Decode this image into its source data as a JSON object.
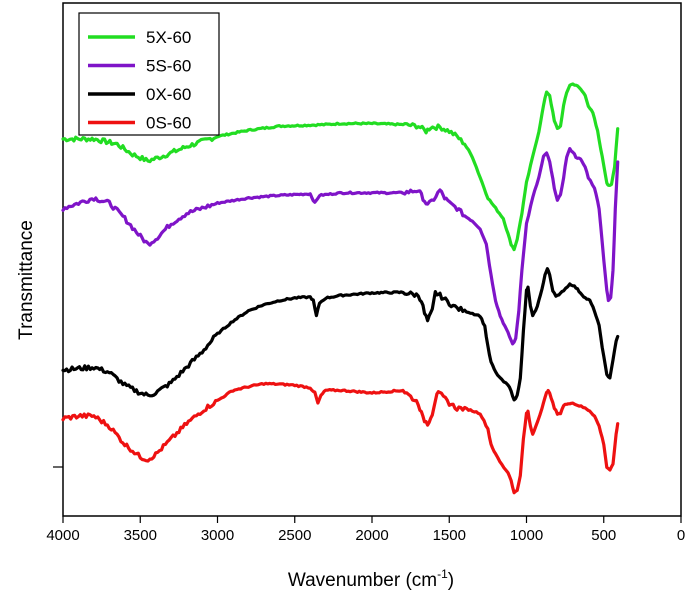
{
  "chart_data": {
    "type": "line",
    "title": "",
    "xlabel": "Wavenumber (cm",
    "xlabel_superscript": "-1",
    "xlabel_suffix": ")",
    "ylabel": "Transmittance",
    "xlim": [
      4000,
      0
    ],
    "ylim": [
      0,
      100
    ],
    "x_ticks": [
      4000,
      3500,
      3000,
      2500,
      2000,
      1500,
      1000,
      500,
      0
    ],
    "x_tick_labels": [
      "4000",
      "3500",
      "3000",
      "2500",
      "2000",
      "1500",
      "1000",
      "500",
      "0"
    ],
    "y_axis_numbered": false,
    "grid": false,
    "legend_position": "top-left",
    "series": [
      {
        "name": "5X-60",
        "color": "#22dd22",
        "points": [
          [
            4000,
            73.5
          ],
          [
            3800,
            73.5
          ],
          [
            3650,
            72.5
          ],
          [
            3550,
            70.5
          ],
          [
            3450,
            69.2
          ],
          [
            3350,
            70.2
          ],
          [
            3200,
            72
          ],
          [
            3000,
            74
          ],
          [
            2800,
            75.2
          ],
          [
            2600,
            76
          ],
          [
            2400,
            76.2
          ],
          [
            2300,
            76.3
          ],
          [
            2200,
            76.5
          ],
          [
            2000,
            76.5
          ],
          [
            1800,
            76.3
          ],
          [
            1700,
            76
          ],
          [
            1650,
            75
          ],
          [
            1620,
            75.8
          ],
          [
            1560,
            75.8
          ],
          [
            1500,
            75
          ],
          [
            1450,
            74
          ],
          [
            1400,
            72.5
          ],
          [
            1350,
            70
          ],
          [
            1300,
            66
          ],
          [
            1250,
            62
          ],
          [
            1200,
            60
          ],
          [
            1150,
            58
          ],
          [
            1120,
            55
          ],
          [
            1100,
            53
          ],
          [
            1080,
            52
          ],
          [
            1060,
            54
          ],
          [
            1030,
            59
          ],
          [
            1000,
            65
          ],
          [
            960,
            70
          ],
          [
            920,
            75
          ],
          [
            890,
            80
          ],
          [
            870,
            82.7
          ],
          [
            850,
            82
          ],
          [
            820,
            77
          ],
          [
            800,
            75.5
          ],
          [
            780,
            76
          ],
          [
            760,
            80
          ],
          [
            740,
            82.5
          ],
          [
            720,
            84
          ],
          [
            700,
            84.2
          ],
          [
            680,
            84
          ],
          [
            650,
            83.2
          ],
          [
            620,
            82
          ],
          [
            600,
            80
          ],
          [
            570,
            78.5
          ],
          [
            540,
            75
          ],
          [
            510,
            70
          ],
          [
            480,
            65
          ],
          [
            470,
            64.5
          ],
          [
            450,
            64.5
          ],
          [
            430,
            68
          ],
          [
            410,
            75.5
          ]
        ]
      },
      {
        "name": "5S-60",
        "color": "#7f14c8",
        "points": [
          [
            4000,
            60
          ],
          [
            3900,
            61
          ],
          [
            3800,
            62
          ],
          [
            3700,
            61
          ],
          [
            3600,
            58
          ],
          [
            3500,
            54.5
          ],
          [
            3450,
            53
          ],
          [
            3400,
            54
          ],
          [
            3300,
            57
          ],
          [
            3200,
            59
          ],
          [
            3100,
            60
          ],
          [
            3000,
            61
          ],
          [
            2800,
            62
          ],
          [
            2600,
            62.5
          ],
          [
            2400,
            62.8
          ],
          [
            2370,
            61
          ],
          [
            2340,
            62.5
          ],
          [
            2200,
            63
          ],
          [
            2000,
            63
          ],
          [
            1800,
            63
          ],
          [
            1700,
            63.5
          ],
          [
            1670,
            62
          ],
          [
            1640,
            60.5
          ],
          [
            1600,
            61.8
          ],
          [
            1560,
            63.5
          ],
          [
            1530,
            62
          ],
          [
            1500,
            61
          ],
          [
            1450,
            60
          ],
          [
            1400,
            58.5
          ],
          [
            1350,
            57.5
          ],
          [
            1300,
            56
          ],
          [
            1260,
            53
          ],
          [
            1230,
            47
          ],
          [
            1200,
            42
          ],
          [
            1170,
            39
          ],
          [
            1140,
            37
          ],
          [
            1110,
            35
          ],
          [
            1090,
            33.5
          ],
          [
            1070,
            34.5
          ],
          [
            1050,
            40
          ],
          [
            1030,
            48
          ],
          [
            1000,
            57
          ],
          [
            960,
            62
          ],
          [
            920,
            66
          ],
          [
            890,
            70
          ],
          [
            870,
            70.8
          ],
          [
            850,
            69
          ],
          [
            820,
            64
          ],
          [
            800,
            61.5
          ],
          [
            780,
            62.5
          ],
          [
            760,
            66
          ],
          [
            740,
            70
          ],
          [
            720,
            71.5
          ],
          [
            700,
            71
          ],
          [
            680,
            70
          ],
          [
            650,
            69.5
          ],
          [
            620,
            68
          ],
          [
            600,
            66
          ],
          [
            560,
            64
          ],
          [
            530,
            60
          ],
          [
            500,
            50
          ],
          [
            480,
            44
          ],
          [
            470,
            42
          ],
          [
            455,
            42.5
          ],
          [
            440,
            48
          ],
          [
            425,
            60
          ],
          [
            410,
            69
          ]
        ]
      },
      {
        "name": "0X-60",
        "color": "#000000",
        "points": [
          [
            4000,
            28.5
          ],
          [
            3800,
            29
          ],
          [
            3700,
            28
          ],
          [
            3600,
            25.5
          ],
          [
            3500,
            24
          ],
          [
            3450,
            23.5
          ],
          [
            3400,
            24
          ],
          [
            3300,
            26
          ],
          [
            3200,
            29
          ],
          [
            3100,
            32
          ],
          [
            3000,
            35.5
          ],
          [
            2900,
            38
          ],
          [
            2800,
            40
          ],
          [
            2700,
            41.2
          ],
          [
            2600,
            42
          ],
          [
            2500,
            42.5
          ],
          [
            2400,
            42.7
          ],
          [
            2380,
            42
          ],
          [
            2360,
            39
          ],
          [
            2340,
            41.5
          ],
          [
            2300,
            42.5
          ],
          [
            2200,
            43
          ],
          [
            2000,
            43.5
          ],
          [
            1800,
            43.6
          ],
          [
            1700,
            43
          ],
          [
            1680,
            42
          ],
          [
            1660,
            39.5
          ],
          [
            1640,
            38
          ],
          [
            1610,
            40
          ],
          [
            1590,
            43.5
          ],
          [
            1560,
            43
          ],
          [
            1500,
            41.5
          ],
          [
            1450,
            40.5
          ],
          [
            1400,
            40
          ],
          [
            1300,
            39
          ],
          [
            1270,
            37
          ],
          [
            1250,
            33
          ],
          [
            1230,
            30
          ],
          [
            1200,
            28
          ],
          [
            1160,
            26.5
          ],
          [
            1120,
            25.5
          ],
          [
            1100,
            24.5
          ],
          [
            1080,
            22.5
          ],
          [
            1060,
            23.5
          ],
          [
            1040,
            27
          ],
          [
            1020,
            36
          ],
          [
            1000,
            44
          ],
          [
            990,
            44.5
          ],
          [
            975,
            41
          ],
          [
            960,
            39
          ],
          [
            940,
            40
          ],
          [
            910,
            43
          ],
          [
            880,
            47
          ],
          [
            865,
            48.2
          ],
          [
            850,
            47
          ],
          [
            830,
            44
          ],
          [
            810,
            43
          ],
          [
            790,
            43
          ],
          [
            760,
            44
          ],
          [
            720,
            45.2
          ],
          [
            700,
            45
          ],
          [
            680,
            44.5
          ],
          [
            650,
            43.5
          ],
          [
            620,
            42.5
          ],
          [
            590,
            42
          ],
          [
            560,
            40
          ],
          [
            530,
            37
          ],
          [
            500,
            31
          ],
          [
            480,
            27.5
          ],
          [
            460,
            27
          ],
          [
            440,
            30.5
          ],
          [
            420,
            34
          ],
          [
            410,
            35
          ]
        ]
      },
      {
        "name": "0S-60",
        "color": "#ee1111",
        "points": [
          [
            4000,
            19
          ],
          [
            3900,
            19.5
          ],
          [
            3800,
            19.5
          ],
          [
            3750,
            18.5
          ],
          [
            3700,
            17.5
          ],
          [
            3600,
            14
          ],
          [
            3500,
            11.5
          ],
          [
            3450,
            11
          ],
          [
            3400,
            12
          ],
          [
            3300,
            15
          ],
          [
            3200,
            18
          ],
          [
            3100,
            20.5
          ],
          [
            3000,
            22.5
          ],
          [
            2900,
            24.5
          ],
          [
            2800,
            25.2
          ],
          [
            2700,
            25.8
          ],
          [
            2600,
            25.7
          ],
          [
            2500,
            25.5
          ],
          [
            2400,
            25
          ],
          [
            2370,
            24
          ],
          [
            2350,
            22
          ],
          [
            2330,
            23.5
          ],
          [
            2300,
            24.5
          ],
          [
            2200,
            24.5
          ],
          [
            2000,
            24
          ],
          [
            1800,
            24.5
          ],
          [
            1700,
            22
          ],
          [
            1670,
            19
          ],
          [
            1640,
            18
          ],
          [
            1610,
            20
          ],
          [
            1580,
            24
          ],
          [
            1550,
            23.5
          ],
          [
            1500,
            22
          ],
          [
            1450,
            21
          ],
          [
            1400,
            21
          ],
          [
            1300,
            20
          ],
          [
            1250,
            17
          ],
          [
            1230,
            14
          ],
          [
            1200,
            12
          ],
          [
            1160,
            10
          ],
          [
            1120,
            8.5
          ],
          [
            1100,
            7
          ],
          [
            1080,
            4.5
          ],
          [
            1060,
            5
          ],
          [
            1040,
            8
          ],
          [
            1020,
            15
          ],
          [
            1000,
            20
          ],
          [
            990,
            20.3
          ],
          [
            975,
            17.5
          ],
          [
            960,
            16
          ],
          [
            940,
            17.5
          ],
          [
            900,
            21
          ],
          [
            870,
            24
          ],
          [
            860,
            24.6
          ],
          [
            840,
            23
          ],
          [
            820,
            21
          ],
          [
            800,
            20
          ],
          [
            780,
            20
          ],
          [
            760,
            21.5
          ],
          [
            730,
            22
          ],
          [
            700,
            22
          ],
          [
            660,
            21.5
          ],
          [
            620,
            21
          ],
          [
            590,
            20.5
          ],
          [
            560,
            19.5
          ],
          [
            530,
            17.5
          ],
          [
            500,
            14
          ],
          [
            480,
            9.5
          ],
          [
            460,
            9
          ],
          [
            440,
            10
          ],
          [
            420,
            16
          ],
          [
            410,
            18
          ]
        ]
      }
    ]
  }
}
